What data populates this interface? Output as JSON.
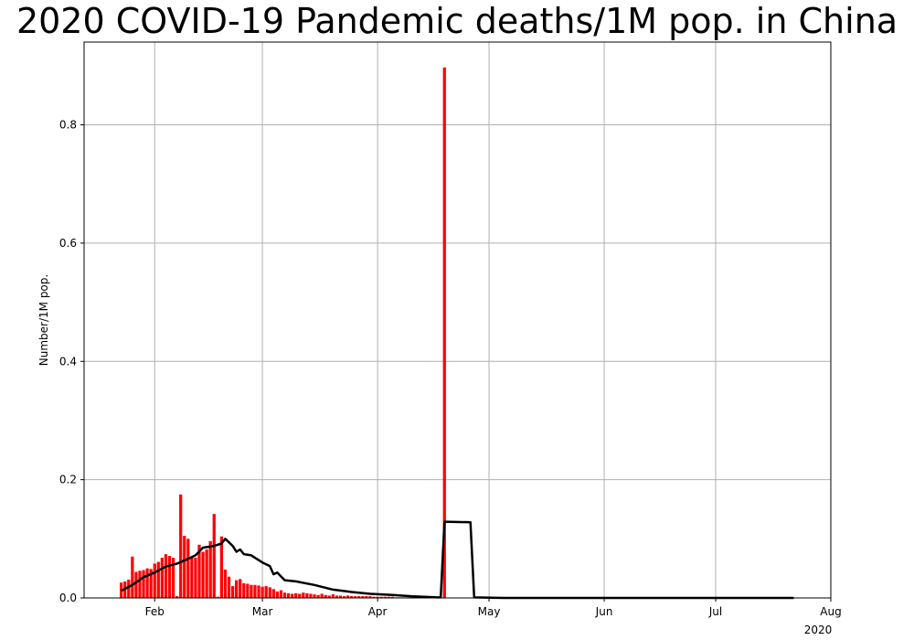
{
  "chart_data": {
    "type": "bar",
    "title": "2020 COVID-19 Pandemic deaths/1M pop. in China",
    "xlabel": "",
    "ylabel": "Number/1M pop.",
    "year_label": "2020",
    "x_tick_labels": [
      "Feb",
      "Mar",
      "Apr",
      "May",
      "Jun",
      "Jul",
      "Aug"
    ],
    "x_tick_dates": [
      "2020-02-01",
      "2020-03-01",
      "2020-04-01",
      "2020-05-01",
      "2020-06-01",
      "2020-07-01",
      "2020-08-01"
    ],
    "xlim": [
      "2020-01-13",
      "2020-08-01"
    ],
    "ylim": [
      0,
      0.94
    ],
    "y_ticks": [
      0.0,
      0.2,
      0.4,
      0.6,
      0.8
    ],
    "y_tick_labels": [
      "0.0",
      "0.2",
      "0.4",
      "0.6",
      "0.8"
    ],
    "grid": true,
    "bar_color": "#ff0000",
    "line_color": "#000000",
    "series": [
      {
        "kind": "bar",
        "start_date": "2020-01-23",
        "values": [
          0.026,
          0.028,
          0.031,
          0.07,
          0.044,
          0.046,
          0.047,
          0.05,
          0.049,
          0.058,
          0.061,
          0.068,
          0.074,
          0.071,
          0.068,
          0.003,
          0.175,
          0.105,
          0.1,
          0.07,
          0.068,
          0.09,
          0.078,
          0.082,
          0.096,
          0.142,
          0.002,
          0.104,
          0.048,
          0.036,
          0.02,
          0.03,
          0.032,
          0.025,
          0.024,
          0.022,
          0.022,
          0.021,
          0.019,
          0.02,
          0.018,
          0.015,
          0.011,
          0.013,
          0.009,
          0.008,
          0.007,
          0.008,
          0.007,
          0.009,
          0.008,
          0.007,
          0.006,
          0.005,
          0.007,
          0.005,
          0.004,
          0.006,
          0.004,
          0.004,
          0.003,
          0.004,
          0.003,
          0.003,
          0.003,
          0.003,
          0.003,
          0.003,
          0.002,
          0.002,
          0.002,
          0.002,
          0.002,
          0.002,
          0.001,
          0.001,
          0.001,
          0.001,
          0.001,
          0.001,
          0.001,
          0.001,
          0.001,
          0.001,
          0.001,
          0.001,
          0.001,
          0.897,
          0,
          0,
          0,
          0,
          0,
          0,
          0,
          0,
          0,
          0,
          0,
          0,
          0,
          0,
          0,
          0,
          0,
          0,
          0,
          0,
          0,
          0,
          0,
          0,
          0,
          0,
          0,
          0,
          0,
          0,
          0,
          0,
          0,
          0,
          0,
          0,
          0,
          0,
          0,
          0,
          0,
          0,
          0,
          0,
          0,
          0,
          0,
          0,
          0,
          0,
          0,
          0,
          0,
          0,
          0,
          0,
          0,
          0,
          0,
          0,
          0,
          0,
          0,
          0,
          0,
          0,
          0,
          0,
          0,
          0,
          0,
          0,
          0,
          0,
          0,
          0,
          0,
          0,
          0,
          0,
          0,
          0,
          0,
          0,
          0,
          0,
          0,
          0,
          0,
          0,
          0,
          0,
          0,
          0
        ]
      },
      {
        "kind": "line",
        "points": [
          [
            "2020-01-23",
            0.012
          ],
          [
            "2020-01-26",
            0.022
          ],
          [
            "2020-01-29",
            0.035
          ],
          [
            "2020-02-01",
            0.043
          ],
          [
            "2020-02-04",
            0.053
          ],
          [
            "2020-02-07",
            0.058
          ],
          [
            "2020-02-10",
            0.066
          ],
          [
            "2020-02-12",
            0.072
          ],
          [
            "2020-02-14",
            0.085
          ],
          [
            "2020-02-17",
            0.088
          ],
          [
            "2020-02-19",
            0.092
          ],
          [
            "2020-02-20",
            0.1
          ],
          [
            "2020-02-22",
            0.088
          ],
          [
            "2020-02-23",
            0.078
          ],
          [
            "2020-02-24",
            0.082
          ],
          [
            "2020-02-25",
            0.074
          ],
          [
            "2020-02-27",
            0.072
          ],
          [
            "2020-03-01",
            0.06
          ],
          [
            "2020-03-03",
            0.054
          ],
          [
            "2020-03-04",
            0.04
          ],
          [
            "2020-03-05",
            0.043
          ],
          [
            "2020-03-07",
            0.03
          ],
          [
            "2020-03-10",
            0.028
          ],
          [
            "2020-03-15",
            0.022
          ],
          [
            "2020-03-20",
            0.014
          ],
          [
            "2020-03-25",
            0.01
          ],
          [
            "2020-03-30",
            0.007
          ],
          [
            "2020-04-05",
            0.005
          ],
          [
            "2020-04-10",
            0.003
          ],
          [
            "2020-04-17",
            0.001
          ],
          [
            "2020-04-18",
            0.001
          ],
          [
            "2020-04-19",
            0.129
          ],
          [
            "2020-04-26",
            0.128
          ],
          [
            "2020-04-27",
            0.001
          ],
          [
            "2020-05-05",
            0.0
          ],
          [
            "2020-06-01",
            0.0
          ],
          [
            "2020-07-01",
            0.0
          ],
          [
            "2020-07-22",
            0.0
          ]
        ]
      }
    ]
  }
}
